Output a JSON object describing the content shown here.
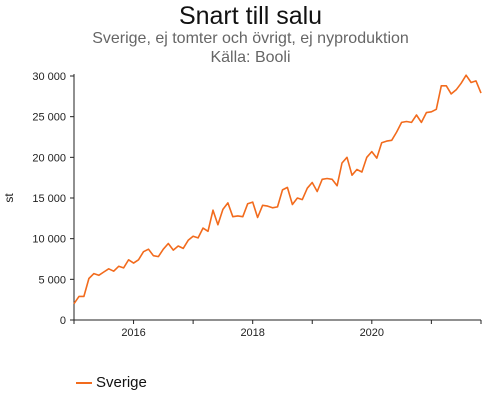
{
  "chart_data": {
    "type": "line",
    "title": "Snart till salu",
    "subtitle": "Sverige, ej tomter och övrigt, ej nyproduktion",
    "source": "Källa: Booli",
    "ylabel": "st",
    "xlabel": "",
    "ylim": [
      0,
      30000
    ],
    "yticks": [
      0,
      5000,
      10000,
      15000,
      20000,
      25000,
      30000
    ],
    "ytick_labels": [
      "0",
      "5 000",
      "10 000",
      "15 000",
      "20 000",
      "25 000",
      "30 000"
    ],
    "xlim": [
      "2015-01",
      "2021-11"
    ],
    "xticks": [
      "2016-01",
      "2018-01",
      "2020-01"
    ],
    "xtick_labels": [
      "2016",
      "2018",
      "2020"
    ],
    "grid": false,
    "legend_position": "bottom-left",
    "color": "#f26b1d",
    "series": [
      {
        "name": "Sverige",
        "x": [
          "2015-01",
          "2015-02",
          "2015-03",
          "2015-04",
          "2015-05",
          "2015-06",
          "2015-07",
          "2015-08",
          "2015-09",
          "2015-10",
          "2015-11",
          "2015-12",
          "2016-01",
          "2016-02",
          "2016-03",
          "2016-04",
          "2016-05",
          "2016-06",
          "2016-07",
          "2016-08",
          "2016-09",
          "2016-10",
          "2016-11",
          "2016-12",
          "2017-01",
          "2017-02",
          "2017-03",
          "2017-04",
          "2017-05",
          "2017-06",
          "2017-07",
          "2017-08",
          "2017-09",
          "2017-10",
          "2017-11",
          "2017-12",
          "2018-01",
          "2018-02",
          "2018-03",
          "2018-04",
          "2018-05",
          "2018-06",
          "2018-07",
          "2018-08",
          "2018-09",
          "2018-10",
          "2018-11",
          "2018-12",
          "2019-01",
          "2019-02",
          "2019-03",
          "2019-04",
          "2019-05",
          "2019-06",
          "2019-07",
          "2019-08",
          "2019-09",
          "2019-10",
          "2019-11",
          "2019-12",
          "2020-01",
          "2020-02",
          "2020-03",
          "2020-04",
          "2020-05",
          "2020-06",
          "2020-07",
          "2020-08",
          "2020-09",
          "2020-10",
          "2020-11",
          "2020-12",
          "2021-01",
          "2021-02",
          "2021-03",
          "2021-04",
          "2021-05",
          "2021-06",
          "2021-07",
          "2021-08",
          "2021-09",
          "2021-10",
          "2021-11"
        ],
        "values": [
          2000,
          2900,
          2900,
          5100,
          5700,
          5500,
          5900,
          6300,
          6000,
          6600,
          6400,
          7400,
          7000,
          7400,
          8400,
          8700,
          7900,
          7800,
          8700,
          9400,
          8600,
          9100,
          8800,
          9800,
          10300,
          10100,
          11300,
          10900,
          13500,
          11700,
          13600,
          14400,
          12700,
          12800,
          12700,
          14300,
          14500,
          12600,
          14100,
          14000,
          13800,
          13900,
          16000,
          16300,
          14200,
          15000,
          14800,
          16200,
          16900,
          15800,
          17300,
          17400,
          17300,
          16500,
          19300,
          20000,
          17800,
          18500,
          18200,
          20000,
          20700,
          19900,
          21800,
          22000,
          22100,
          23100,
          24300,
          24400,
          24300,
          25200,
          24300,
          25500,
          25600,
          25900,
          28800,
          28800,
          27800,
          28300,
          29100,
          30100,
          29200,
          29400,
          27900
        ]
      }
    ]
  },
  "legend": {
    "label": "Sverige"
  }
}
